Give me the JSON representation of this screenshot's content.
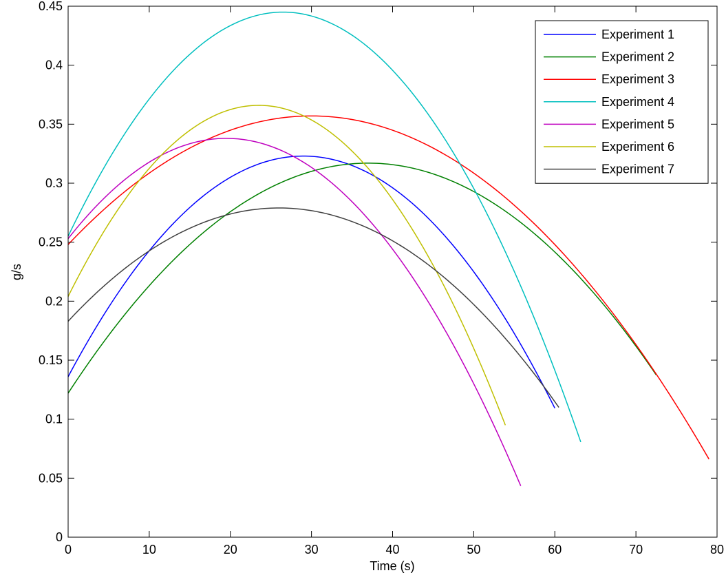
{
  "chart_data": {
    "type": "line",
    "xlabel": "Time (s)",
    "ylabel": "g/s",
    "xlim": [
      0,
      80
    ],
    "ylim": [
      0,
      0.45
    ],
    "x_ticks": [
      "0",
      "10",
      "20",
      "30",
      "40",
      "50",
      "60",
      "70",
      "80"
    ],
    "y_ticks": [
      "0",
      "0.05",
      "0.1",
      "0.15",
      "0.2",
      "0.25",
      "0.3",
      "0.35",
      "0.4",
      "0.45"
    ],
    "grid": false,
    "legend_position": "top-right",
    "series": [
      {
        "name": "Experiment 1",
        "color": "#0000ff",
        "x": [
          0,
          29,
          60
        ],
        "y": [
          0.136,
          0.323,
          0.093
        ]
      },
      {
        "name": "Experiment 2",
        "color": "#008000",
        "x": [
          0,
          37,
          72.5
        ],
        "y": [
          0.122,
          0.317,
          0.113
        ]
      },
      {
        "name": "Experiment 3",
        "color": "#ff0000",
        "x": [
          0,
          30,
          79
        ],
        "y": [
          0.248,
          0.357,
          0.02
        ]
      },
      {
        "name": "Experiment 4",
        "color": "#00bfbf",
        "x": [
          0,
          26.5,
          63.2
        ],
        "y": [
          0.255,
          0.445,
          0.08
        ]
      },
      {
        "name": "Experiment 5",
        "color": "#bf00bf",
        "x": [
          0,
          19.5,
          55.8
        ],
        "y": [
          0.253,
          0.338,
          0.068
        ]
      },
      {
        "name": "Experiment 6",
        "color": "#bfbf00",
        "x": [
          0,
          23.5,
          53.9
        ],
        "y": [
          0.204,
          0.366,
          0.105
        ]
      },
      {
        "name": "Experiment 7",
        "color": "#404040",
        "x": [
          0,
          26,
          60.5
        ],
        "y": [
          0.183,
          0.279,
          0.094
        ]
      }
    ]
  }
}
